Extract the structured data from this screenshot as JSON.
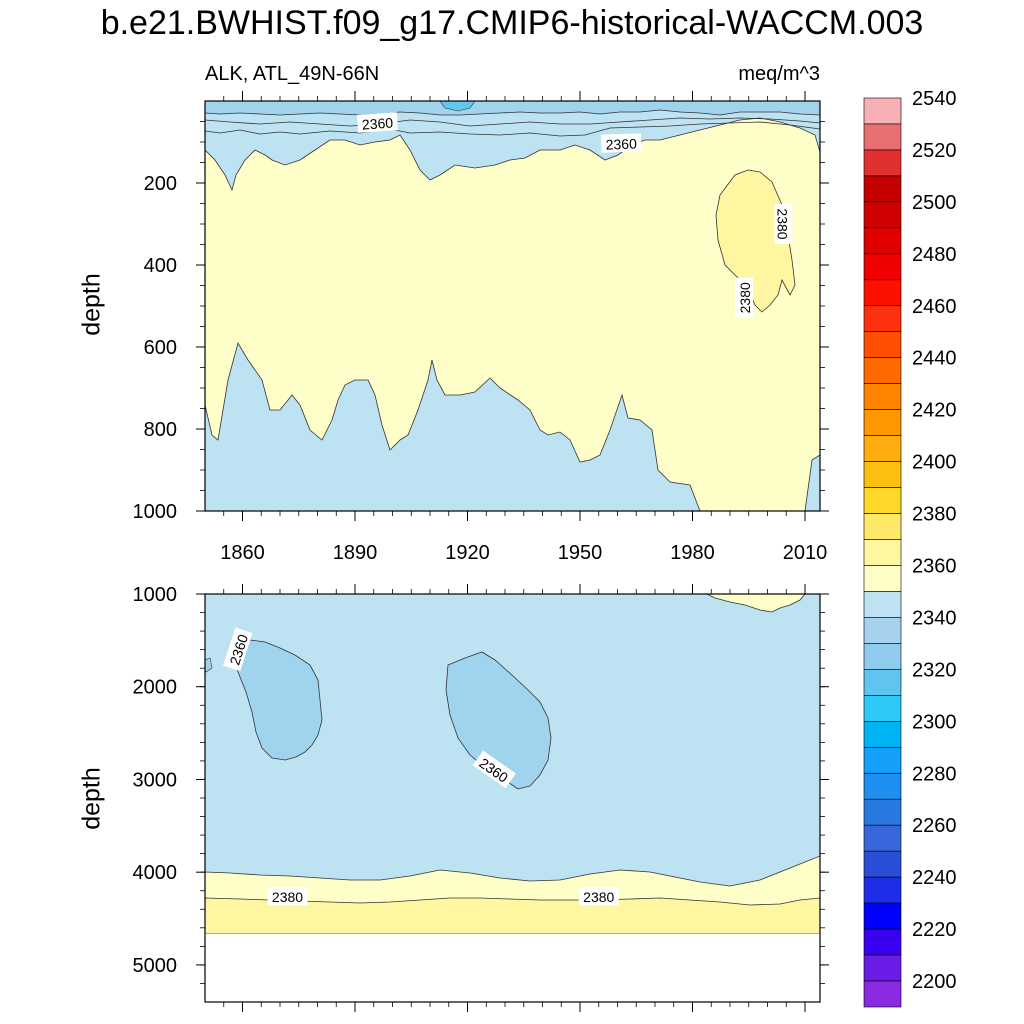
{
  "title": "b.e21.BWHIST.f09_g17.CMIP6-historical-WACCM.003",
  "variable_label": "ALK, ATL_49N-66N",
  "unit_label": "meq/m^3",
  "chart_data": [
    {
      "type": "contour",
      "panel": "upper",
      "xlabel": "",
      "ylabel": "depth",
      "xlim": [
        1850,
        2014
      ],
      "ylim": [
        1000,
        0
      ],
      "x_ticks": [
        1860,
        1890,
        1920,
        1950,
        1980,
        2010
      ],
      "y_ticks": [
        200,
        400,
        600,
        800,
        1000
      ],
      "contour_labels": [
        {
          "text": "2360",
          "x": 1896,
          "y": 55
        },
        {
          "text": "2360",
          "x": 1961,
          "y": 105
        },
        {
          "text": "2380",
          "x": 2004,
          "y": 300
        },
        {
          "text": "2380",
          "x": 1994,
          "y": 480
        }
      ],
      "regions": [
        {
          "level": "2340-2350",
          "description": "thin surface layer near 0-30 m"
        },
        {
          "level": "2350-2360",
          "description": "upper layer 0-200 m"
        },
        {
          "level": "2360-2370",
          "description": "bottom portion below ~700 m"
        },
        {
          "level": "2370-2380",
          "description": "main water mass 150-800 m"
        },
        {
          "level": "2380-2390",
          "description": "patch 1990-2005 at 200-500 m"
        }
      ]
    },
    {
      "type": "contour",
      "panel": "lower",
      "xlabel": "",
      "ylabel": "depth",
      "xlim": [
        1850,
        2014
      ],
      "ylim": [
        5400,
        1000
      ],
      "y_ticks": [
        1000,
        2000,
        3000,
        4000,
        5000
      ],
      "contour_labels": [
        {
          "text": "2360",
          "x": 1859,
          "y": 1600
        },
        {
          "text": "2360",
          "x": 1927,
          "y": 2900
        },
        {
          "text": "2380",
          "x": 1872,
          "y": 4270
        },
        {
          "text": "2380",
          "x": 1955,
          "y": 4270
        }
      ],
      "regions": [
        {
          "level": "2360-2370",
          "description": "dominant water mass 1000-4000 m"
        },
        {
          "level": "2350-2360",
          "description": "lens 1860-1880 at 1500-2800 m"
        },
        {
          "level": "2350-2360",
          "description": "lens 1915-1935 at 1700-3100 m"
        },
        {
          "level": "2370-2380",
          "description": "layer ~4000-4250 m"
        },
        {
          "level": "2380-2390",
          "description": "layer ~4250-4600 m"
        }
      ],
      "missing_below": 4600
    }
  ],
  "colorbar": {
    "labels": [
      "2200",
      "2220",
      "2240",
      "2260",
      "2280",
      "2300",
      "2320",
      "2340",
      "2360",
      "2380",
      "2400",
      "2420",
      "2440",
      "2460",
      "2480",
      "2500",
      "2520",
      "2540"
    ],
    "colors": [
      "#8a2be2",
      "#6a1be8",
      "#3a00f0",
      "#0000ff",
      "#1e2ee8",
      "#2a4ed8",
      "#3a66dc",
      "#2878e0",
      "#1e8ef0",
      "#14a0f8",
      "#00b4f4",
      "#2ec8f4",
      "#60c4f0",
      "#8ecbec",
      "#a6d2ee",
      "#bfe2f2",
      "#fefec8",
      "#fef6a0",
      "#fee868",
      "#fed828",
      "#fec010",
      "#feac10",
      "#fe9800",
      "#fe8400",
      "#fe6a00",
      "#fe5000",
      "#fe3010",
      "#fe1000",
      "#f00000",
      "#e00000",
      "#d00000",
      "#c40000",
      "#e03030",
      "#e87070",
      "#f7b0b6"
    ]
  }
}
